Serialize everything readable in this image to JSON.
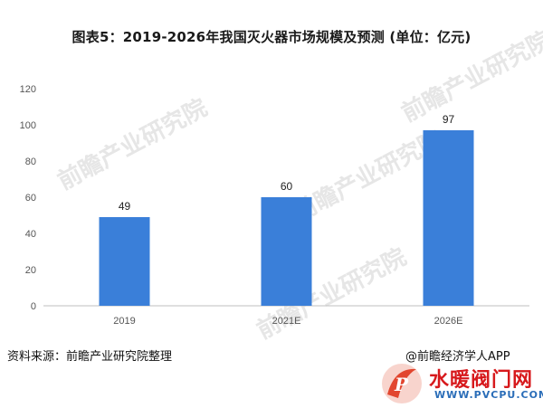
{
  "chart_data": {
    "type": "bar",
    "title": "图表5：2019-2026年我国灭火器市场规模及预测 (单位：亿元)",
    "categories": [
      "2019",
      "2021E",
      "2026E"
    ],
    "values": [
      49,
      60,
      97
    ],
    "value_labels": [
      "49",
      "60",
      "97"
    ],
    "ylim": [
      0,
      120
    ],
    "yticks": [
      "0",
      "20",
      "40",
      "60",
      "80",
      "100",
      "120"
    ],
    "grid": false,
    "bar_color": "#3a7fd9",
    "legend": "none"
  },
  "footer": {
    "source": "资料来源：前瞻产业研究院整理",
    "credit": "@前瞻经济学人APP"
  },
  "watermark": {
    "text": "前瞻产业研究院"
  },
  "logo": {
    "name": "水暖阀门网",
    "url": "WWW.PVCPU.COM",
    "icon": "pv-logo-icon"
  }
}
